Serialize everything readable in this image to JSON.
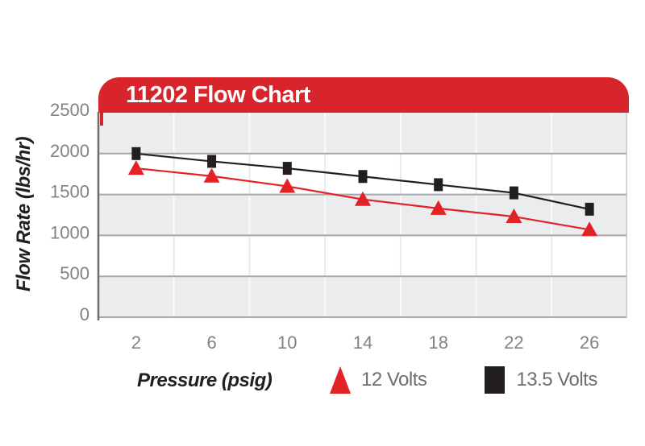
{
  "banner": {
    "title": "11202 Flow Chart",
    "color": "#D7252B",
    "text_color": "#FFFFFF"
  },
  "chart_data": {
    "type": "line",
    "title": "11202 Flow Chart",
    "xlabel": "Pressure (psig)",
    "ylabel": "Flow Rate (lbs/hr)",
    "x": [
      2,
      6,
      10,
      14,
      18,
      22,
      26
    ],
    "yticks": [
      0,
      500,
      1000,
      1500,
      2000,
      2500
    ],
    "ylim": [
      0,
      2500
    ],
    "xlim_cells": 7,
    "series": [
      {
        "name": "12 Volts",
        "marker": "triangle",
        "color": "#E32227",
        "values": [
          1820,
          1725,
          1600,
          1440,
          1330,
          1230,
          1070
        ]
      },
      {
        "name": "13.5 Volts",
        "marker": "square",
        "color": "#231F20",
        "values": [
          2000,
          1905,
          1820,
          1720,
          1620,
          1520,
          1320
        ]
      }
    ],
    "grid": {
      "horizontal_bands": true,
      "band_color": "#EBECEE",
      "band_alt_color": "#FFFFFF",
      "gridline_color": "#A6A8AB",
      "vline_on_gray": "#FAFAFC",
      "vline_on_white": "#E9EAED"
    },
    "legend_position": "bottom"
  },
  "axis_style": {
    "tick_text_color": "#808285",
    "legend_text_color": "#6D6E71",
    "left_border_color": "#6D6E71",
    "right_border_color": "#C6C7CA"
  }
}
